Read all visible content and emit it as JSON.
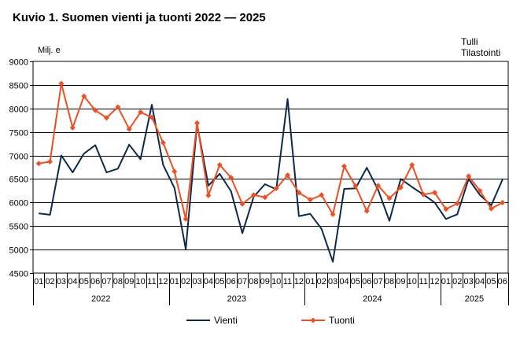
{
  "page": {
    "title": "Kuvio 1. Suomen vienti ja tuonti 2022 — 2025",
    "source_lines": [
      "Tulli",
      "Tilastointi"
    ],
    "unit": "Milj. e"
  },
  "chart_data": {
    "type": "line",
    "title": "Kuvio 1. Suomen vienti ja tuonti 2022 — 2025",
    "ylabel": "Milj. e",
    "ylim": [
      4500,
      9000
    ],
    "yticks": [
      4500,
      5000,
      5500,
      6000,
      6500,
      7000,
      7500,
      8000,
      8500,
      9000
    ],
    "grid": true,
    "legend": "bottom",
    "years": [
      {
        "label": "2022",
        "months": 12
      },
      {
        "label": "2023",
        "months": 12
      },
      {
        "label": "2024",
        "months": 12
      },
      {
        "label": "2025",
        "months": 6
      }
    ],
    "categories": [
      "01",
      "02",
      "03",
      "04",
      "05",
      "06",
      "07",
      "08",
      "09",
      "10",
      "11",
      "12",
      "01",
      "02",
      "03",
      "04",
      "05",
      "06",
      "07",
      "08",
      "09",
      "10",
      "11",
      "12",
      "01",
      "02",
      "03",
      "04",
      "05",
      "06",
      "07",
      "08",
      "09",
      "10",
      "11",
      "12",
      "01",
      "02",
      "03",
      "04",
      "05",
      "06"
    ],
    "series": [
      {
        "name": "Vienti",
        "color": "#0d2a4a",
        "values": [
          5770,
          5740,
          7000,
          6640,
          7040,
          7220,
          6640,
          6720,
          7230,
          6920,
          8080,
          6800,
          6310,
          5010,
          7670,
          6360,
          6610,
          6240,
          5350,
          6120,
          6390,
          6280,
          8200,
          5710,
          5760,
          5440,
          4740,
          6290,
          6300,
          6740,
          6270,
          5610,
          6500,
          6330,
          6170,
          6000,
          5650,
          5750,
          6500,
          6160,
          5940,
          6490
        ]
      },
      {
        "name": "Tuonti",
        "color": "#f04e23",
        "values": [
          6830,
          6870,
          8530,
          7590,
          8260,
          7960,
          7800,
          8030,
          7560,
          7920,
          7810,
          7270,
          6660,
          5650,
          7690,
          6150,
          6800,
          6530,
          5970,
          6160,
          6110,
          6300,
          6580,
          6210,
          6060,
          6160,
          5750,
          6770,
          6350,
          5820,
          6360,
          6090,
          6320,
          6800,
          6170,
          6210,
          5860,
          5980,
          6560,
          6250,
          5870,
          6000
        ]
      }
    ]
  }
}
